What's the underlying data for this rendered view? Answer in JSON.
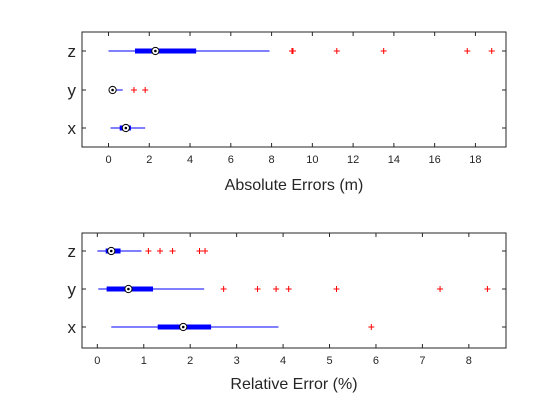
{
  "chart_data": [
    {
      "type": "boxplot",
      "orientation": "horizontal",
      "xlabel": "Absolute Errors (m)",
      "xlim": [
        -1.3,
        19.5
      ],
      "xticks": [
        0,
        2,
        4,
        6,
        8,
        10,
        12,
        14,
        16,
        18
      ],
      "categories": [
        "z",
        "y",
        "x"
      ],
      "grid": false,
      "colors": {
        "box": "#0000ff",
        "outlier": "#ff0000",
        "median_marker": "#000000",
        "axes": "#262626"
      },
      "boxes": [
        {
          "category": "z",
          "whisker_low": 0.0,
          "q1": 1.3,
          "median": 2.3,
          "q3": 4.3,
          "whisker_high": 7.9,
          "outliers": [
            9.0,
            9.05,
            11.2,
            13.5,
            17.6,
            18.8
          ]
        },
        {
          "category": "y",
          "whisker_low": 0.05,
          "q1": 0.1,
          "median": 0.2,
          "q3": 0.35,
          "whisker_high": 0.7,
          "outliers": [
            1.25,
            1.8
          ]
        },
        {
          "category": "x",
          "whisker_low": 0.1,
          "q1": 0.55,
          "median": 0.85,
          "q3": 1.1,
          "whisker_high": 1.8,
          "outliers": []
        }
      ]
    },
    {
      "type": "boxplot",
      "orientation": "horizontal",
      "xlabel": "Relative Error (%)",
      "xlim": [
        -0.33,
        8.8
      ],
      "xticks": [
        0,
        1,
        2,
        3,
        4,
        5,
        6,
        7,
        8
      ],
      "categories": [
        "z",
        "y",
        "x"
      ],
      "grid": false,
      "colors": {
        "box": "#0000ff",
        "outlier": "#ff0000",
        "median_marker": "#000000",
        "axes": "#262626"
      },
      "boxes": [
        {
          "category": "z",
          "whisker_low": 0.0,
          "q1": 0.18,
          "median": 0.3,
          "q3": 0.5,
          "whisker_high": 0.95,
          "outliers": [
            1.1,
            1.35,
            1.62,
            2.2,
            2.32
          ]
        },
        {
          "category": "y",
          "whisker_low": 0.02,
          "q1": 0.2,
          "median": 0.67,
          "q3": 1.2,
          "whisker_high": 2.3,
          "outliers": [
            2.72,
            3.45,
            3.85,
            4.12,
            5.15,
            7.38,
            8.4
          ]
        },
        {
          "category": "x",
          "whisker_low": 0.3,
          "q1": 1.3,
          "median": 1.85,
          "q3": 2.45,
          "whisker_high": 3.9,
          "outliers": [
            5.9
          ]
        }
      ]
    }
  ]
}
